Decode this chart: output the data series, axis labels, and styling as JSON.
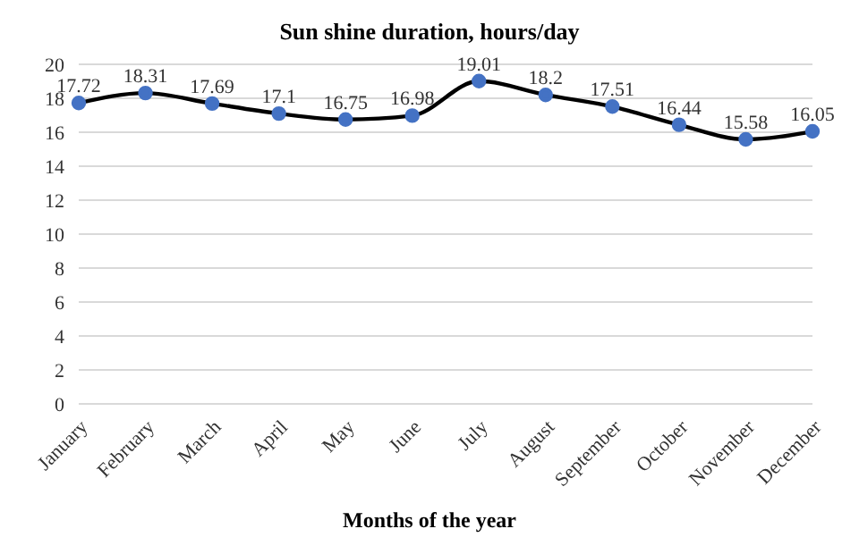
{
  "chart_data": {
    "type": "line",
    "title": "Sun shine duration, hours/day",
    "xlabel": "Months of the year",
    "categories": [
      "January",
      "February",
      "March",
      "April",
      "May",
      "June",
      "July",
      "August",
      "September",
      "October",
      "November",
      "December"
    ],
    "series": [
      {
        "color": "#000000",
        "values": [
          17.72,
          18.31,
          17.69,
          17.1,
          16.75,
          16.98,
          19.01,
          18.2,
          17.51,
          16.44,
          15.58,
          16.05
        ]
      }
    ],
    "ylim": [
      0,
      20
    ],
    "yticks": [
      0,
      2,
      4,
      6,
      8,
      10,
      12,
      14,
      16,
      18,
      20
    ],
    "grid": "y",
    "marker": "circle",
    "data_labels": true,
    "legend": false
  }
}
